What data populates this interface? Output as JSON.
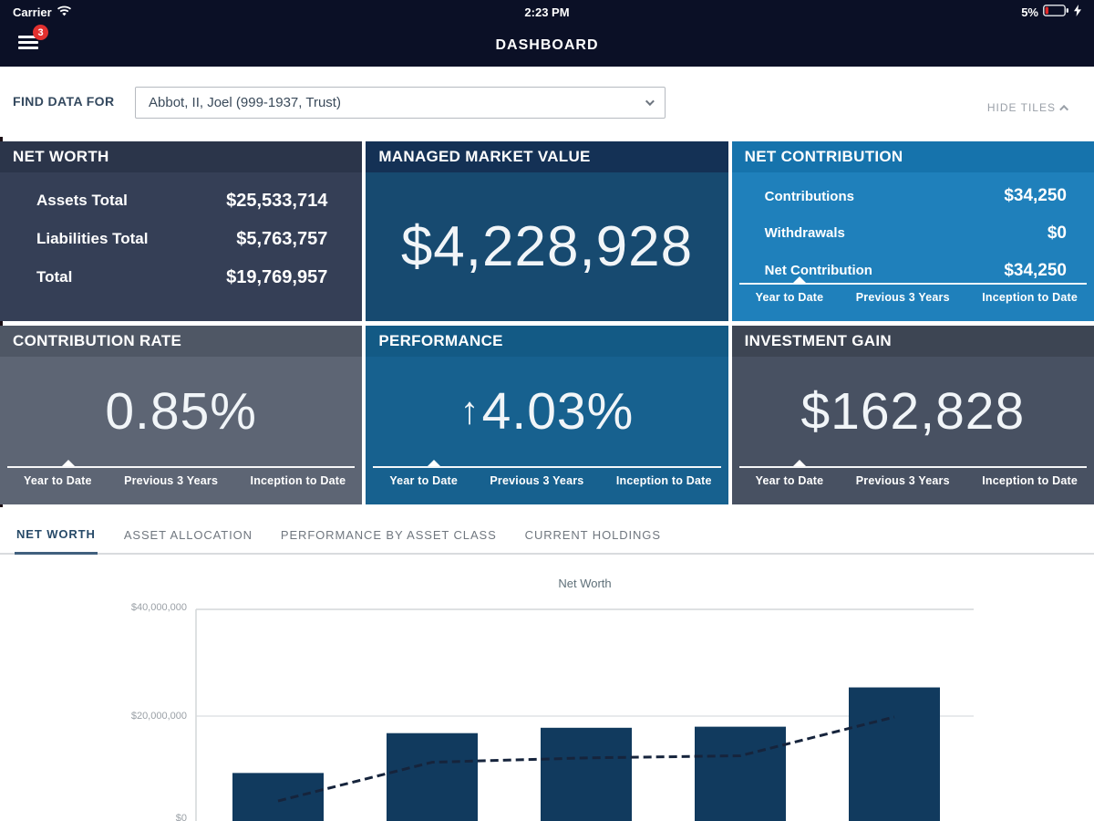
{
  "status_bar": {
    "carrier": "Carrier",
    "time": "2:23 PM",
    "battery": "5%"
  },
  "nav": {
    "title": "DASHBOARD",
    "menu_badge": "3"
  },
  "toolbar": {
    "label": "FIND DATA FOR",
    "selected_entity": "Abbot, II, Joel (999-1937, Trust)",
    "hide_tiles": "HIDE TILES"
  },
  "icons": {
    "menu": "hamburger",
    "wifi": "wifi",
    "battery": "battery-low-charging",
    "bolt": "lightning",
    "dropdown_caret": "chevron-down",
    "hide_tiles_caret": "chevron-up",
    "performance_arrow": "↑",
    "tab_marker": "triangle-up"
  },
  "tiles": {
    "period_tabs": [
      "Year to Date",
      "Previous 3 Years",
      "Inception to Date"
    ],
    "active_period": "Year to Date",
    "net_worth": {
      "title": "NET WORTH",
      "bg": "#353f56",
      "header_bg": "#2b354a",
      "rows": [
        {
          "label": "Assets Total",
          "value": "$25,533,714"
        },
        {
          "label": "Liabilities Total",
          "value": "$5,763,757"
        },
        {
          "label": "Total",
          "value": "$19,769,957"
        }
      ]
    },
    "managed_market_value": {
      "title": "MANAGED MARKET VALUE",
      "value": "$4,228,928",
      "bg": "#174a70",
      "header_bg": "#143155"
    },
    "net_contribution": {
      "title": "NET CONTRIBUTION",
      "bg": "#1f80bb",
      "header_bg": "#1673ac",
      "rows": [
        {
          "label": "Contributions",
          "value": "$34,250"
        },
        {
          "label": "Withdrawals",
          "value": "$0"
        },
        {
          "label": "Net Contribution",
          "value": "$34,250"
        }
      ]
    },
    "contribution_rate": {
      "title": "CONTRIBUTION RATE",
      "value": "0.85%",
      "bg": "#5d6574",
      "header_bg": "#4f5765"
    },
    "performance": {
      "title": "PERFORMANCE",
      "arrow": "↑",
      "value": "4.03%",
      "bg": "#17618f",
      "header_bg": "#135a85"
    },
    "investment_gain": {
      "title": "INVESTMENT GAIN",
      "value": "$162,828",
      "bg": "#485162",
      "header_bg": "#3d4553"
    }
  },
  "section_tabs": {
    "items": [
      "NET WORTH",
      "ASSET ALLOCATION",
      "PERFORMANCE BY ASSET CLASS",
      "CURRENT HOLDINGS"
    ],
    "active": "NET WORTH"
  },
  "chart_data": {
    "type": "bar",
    "title": "Net Worth",
    "categories": [
      "",
      "",
      "",
      "",
      ""
    ],
    "series": [
      {
        "name": "Net Worth",
        "type": "bar",
        "values": [
          9600000,
          17000000,
          18000000,
          18200000,
          25500000
        ]
      },
      {
        "name": "Trend",
        "type": "line",
        "style": "dashed",
        "values": [
          4400000,
          11600000,
          12400000,
          12800000,
          20000000
        ]
      }
    ],
    "ylim": [
      0,
      40000000
    ],
    "yticks": [
      "$0",
      "$20,000,000",
      "$40,000,000"
    ],
    "grid": "horizontal",
    "legend": "none",
    "bar_color": "#113a5e",
    "line_color": "#16243c"
  }
}
